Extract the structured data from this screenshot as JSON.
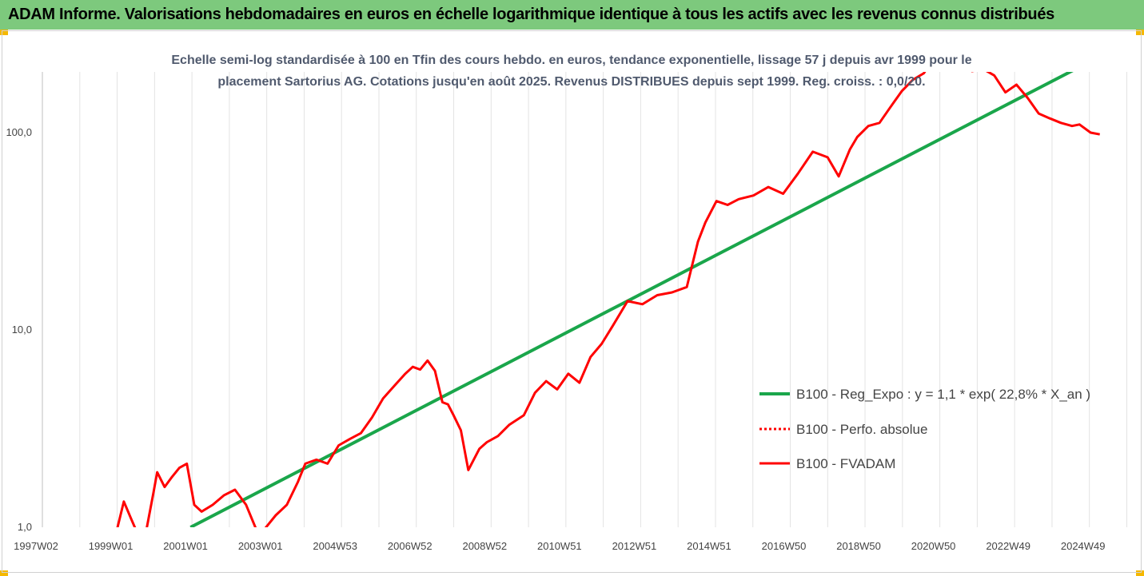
{
  "header": {
    "title": "ADAM Informe. Valorisations hebdomadaires en euros en échelle logarithmique identique à tous les actifs avec les revenus connus distribués"
  },
  "chart_data": {
    "type": "line",
    "title_line1": "Echelle semi-log standardisée à 100 en Tfin des cours hebdo. en euros, tendance exponentielle, lissage 57 j depuis avr 1999 pour le",
    "title_line2": "placement Sartorius AG. Cotations jusqu'en août 2025. Revenus DISTRIBUES depuis sept 1999. Reg. croiss. : 0,0/20.",
    "y_scale": "log",
    "ylim": [
      1,
      200
    ],
    "y_ticks": [
      {
        "label": "1,0",
        "value": 1
      },
      {
        "label": "10,0",
        "value": 10
      },
      {
        "label": "100,0",
        "value": 100
      }
    ],
    "x_tick_labels": [
      "1997W02",
      "1999W01",
      "2001W01",
      "2003W01",
      "2004W53",
      "2006W52",
      "2008W52",
      "2010W51",
      "2012W51",
      "2014W51",
      "2016W50",
      "2018W50",
      "2020W50",
      "2022W49",
      "2024W49"
    ],
    "x_range": [
      1997.0,
      2025.75
    ],
    "grid": "vertical",
    "legend_position": "right",
    "legend": [
      "B100 - Reg_Expo : y = 1,1 * exp( 22,8% *  X_an )",
      "B100 - Perfo. absolue",
      "B100 - FVADAM"
    ],
    "colors": {
      "trend": "#1aa64b",
      "series": "#ff0000"
    },
    "series": [
      {
        "name": "B100 - Reg_Expo : y = 1,1 * exp( 22,8% *  X_an )",
        "type": "trend",
        "x": [
          2001.0,
          2025.0
        ],
        "y": [
          1.0,
          215
        ]
      },
      {
        "name": "B100 - Perfo. absolue",
        "type": "dotted",
        "x": [],
        "y": []
      },
      {
        "name": "B100 - FVADAM",
        "type": "line",
        "x": [
          1999.0,
          1999.2,
          1999.4,
          1999.6,
          1999.8,
          2000.0,
          2000.1,
          2000.3,
          2000.5,
          2000.7,
          2000.9,
          2001.1,
          2001.3,
          2001.6,
          2001.9,
          2002.2,
          2002.5,
          2002.8,
          2003.0,
          2003.3,
          2003.6,
          2003.9,
          2004.1,
          2004.4,
          2004.7,
          2005.0,
          2005.3,
          2005.6,
          2005.9,
          2006.2,
          2006.5,
          2006.8,
          2007.0,
          2007.2,
          2007.4,
          2007.6,
          2007.8,
          2007.95,
          2008.1,
          2008.3,
          2008.5,
          2008.8,
          2009.0,
          2009.3,
          2009.6,
          2010.0,
          2010.3,
          2010.6,
          2010.9,
          2011.2,
          2011.5,
          2011.8,
          2012.1,
          2012.4,
          2012.8,
          2013.2,
          2013.6,
          2014.0,
          2014.4,
          2014.7,
          2014.9,
          2015.2,
          2015.5,
          2015.8,
          2016.2,
          2016.6,
          2017.0,
          2017.4,
          2017.8,
          2018.2,
          2018.5,
          2018.8,
          2019.0,
          2019.3,
          2019.6,
          2019.9,
          2020.2,
          2020.5,
          2020.8,
          2021.0,
          2021.3,
          2021.6,
          2021.8,
          2022.1,
          2022.4,
          2022.7,
          2023.0,
          2023.3,
          2023.6,
          2023.9,
          2024.2,
          2024.5,
          2024.8,
          2025.0,
          2025.3,
          2025.55
        ],
        "y": [
          0.95,
          1.35,
          1.1,
          0.9,
          0.95,
          1.5,
          1.9,
          1.6,
          1.8,
          2.0,
          2.1,
          1.3,
          1.2,
          1.3,
          1.45,
          1.55,
          1.3,
          0.95,
          0.98,
          1.15,
          1.3,
          1.7,
          2.1,
          2.2,
          2.1,
          2.6,
          2.8,
          3.0,
          3.6,
          4.5,
          5.2,
          6.0,
          6.5,
          6.3,
          7.0,
          6.2,
          4.3,
          4.2,
          3.7,
          3.1,
          1.95,
          2.5,
          2.7,
          2.9,
          3.3,
          3.7,
          4.8,
          5.5,
          5.0,
          6.0,
          5.4,
          7.3,
          8.5,
          10.5,
          14.0,
          13.5,
          15.0,
          15.5,
          16.5,
          28.0,
          35.0,
          45.0,
          43.0,
          46.0,
          48.0,
          53.0,
          49.0,
          62.0,
          80.0,
          75.0,
          60.0,
          82.0,
          95.0,
          108.0,
          112.0,
          135.0,
          162.0,
          185.0,
          200.0,
          230.0,
          215.0,
          240.0,
          220.0,
          205.0,
          210.0,
          195.0,
          160.0,
          175.0,
          150.0,
          125.0,
          118.0,
          112.0,
          108.0,
          110.0,
          100.0,
          98.0
        ]
      }
    ]
  }
}
